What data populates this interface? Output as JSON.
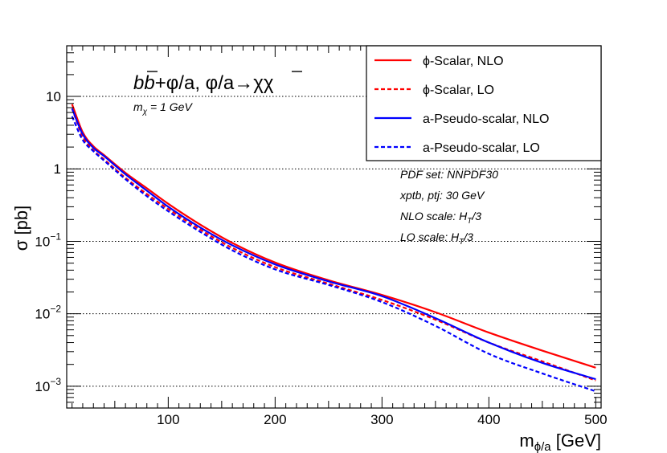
{
  "chart_data": {
    "type": "line",
    "title": "b b̄ + ϕ/a, ϕ/a → χ χ̄",
    "subtitle": "m_χ = 1 GeV",
    "xlabel": "m_ϕ/a [GeV]",
    "ylabel": "σ [pb]",
    "x_scale": "linear",
    "y_scale": "log",
    "xlim": [
      5,
      505
    ],
    "ylim": [
      0.0005,
      50
    ],
    "grid": "horizontal dotted at decades",
    "x_ticks": [
      100,
      200,
      300,
      400,
      500
    ],
    "x_tick_labels": [
      "100",
      "200",
      "300",
      "400",
      "500"
    ],
    "y_ticks": [
      0.001,
      0.01,
      0.1,
      1,
      10
    ],
    "y_tick_labels": [
      {
        "base": "10",
        "exp": "−3"
      },
      {
        "base": "10",
        "exp": "−2"
      },
      {
        "base": "10",
        "exp": "−1"
      },
      {
        "base": "1",
        "exp": ""
      },
      {
        "base": "10",
        "exp": ""
      }
    ],
    "legend_position": "top-right",
    "series": [
      {
        "name": "ϕ-Scalar, NLO",
        "color": "#ff0000",
        "dash": "solid",
        "x": [
          10,
          20,
          30,
          40,
          60,
          80,
          100,
          130,
          160,
          200,
          250,
          300,
          350,
          400,
          450,
          500
        ],
        "y": [
          7.8,
          3.2,
          2.05,
          1.55,
          0.88,
          0.54,
          0.33,
          0.17,
          0.095,
          0.051,
          0.029,
          0.0182,
          0.0105,
          0.0055,
          0.0031,
          0.0018
        ]
      },
      {
        "name": "ϕ-Scalar, LO",
        "color": "#ff0000",
        "dash": "dashed",
        "x": [
          10,
          20,
          30,
          40,
          60,
          80,
          100,
          130,
          160,
          200,
          250,
          300,
          350,
          400,
          450,
          500
        ],
        "y": [
          6.8,
          2.8,
          1.8,
          1.35,
          0.75,
          0.45,
          0.28,
          0.145,
          0.081,
          0.044,
          0.026,
          0.0155,
          0.0083,
          0.004,
          0.0022,
          0.0012
        ]
      },
      {
        "name": "a-Pseudo-scalar, NLO",
        "color": "#0000ff",
        "dash": "solid",
        "x": [
          10,
          20,
          30,
          40,
          60,
          80,
          100,
          130,
          160,
          200,
          250,
          300,
          350,
          400,
          450,
          500
        ],
        "y": [
          6.8,
          3.0,
          1.95,
          1.5,
          0.84,
          0.5,
          0.3,
          0.155,
          0.088,
          0.048,
          0.028,
          0.0175,
          0.0087,
          0.004,
          0.0021,
          0.00125
        ]
      },
      {
        "name": "a-Pseudo-scalar, LO",
        "color": "#0000ff",
        "dash": "dashed",
        "x": [
          10,
          20,
          30,
          40,
          60,
          80,
          100,
          130,
          160,
          200,
          250,
          300,
          350,
          400,
          450,
          500
        ],
        "y": [
          5.3,
          2.5,
          1.75,
          1.3,
          0.72,
          0.42,
          0.26,
          0.135,
          0.075,
          0.041,
          0.025,
          0.0145,
          0.0068,
          0.0028,
          0.0015,
          0.00085
        ]
      }
    ],
    "annotations": [
      "PDF set: NNPDF30",
      "xptb, ptj: 30 GeV",
      "NLO scale: H_T/3",
      "LO scale: H_T/3"
    ]
  }
}
